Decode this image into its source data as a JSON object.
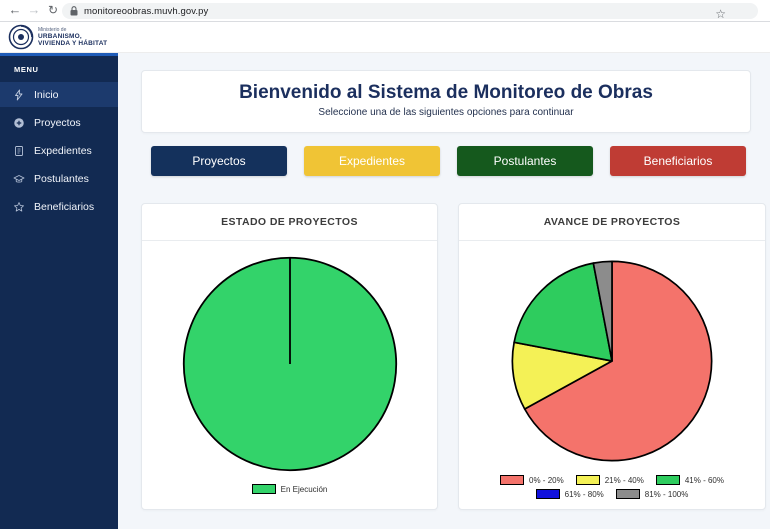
{
  "browser": {
    "url": "monitoreoobras.muvh.gov.py",
    "back_icon": "←",
    "forward_icon": "→",
    "refresh_icon": "↻",
    "star_icon": "☆"
  },
  "header": {
    "logo_line1": "Ministerio de",
    "logo_line2": "URBANISMO,",
    "logo_line3": "VIVIENDA Y HÁBITAT"
  },
  "sidebar": {
    "menu_label": "MENU",
    "items": [
      {
        "label": "Inicio",
        "icon": "bolt-icon",
        "active": true
      },
      {
        "label": "Proyectos",
        "icon": "plus-circle-icon",
        "active": false
      },
      {
        "label": "Expedientes",
        "icon": "journal-icon",
        "active": false
      },
      {
        "label": "Postulantes",
        "icon": "graduation-cap-icon",
        "active": false
      },
      {
        "label": "Beneficiarios",
        "icon": "star-outline-icon",
        "active": false
      }
    ]
  },
  "main": {
    "welcome": {
      "title": "Bienvenido al Sistema de Monitoreo de Obras",
      "subtitle": "Seleccione una de las siguientes opciones para continuar"
    },
    "action_buttons": [
      {
        "label": "Proyectos",
        "color": "#14315c"
      },
      {
        "label": "Expedientes",
        "color": "#f0c435"
      },
      {
        "label": "Postulantes",
        "color": "#15591d"
      },
      {
        "label": "Beneficiarios",
        "color": "#bf3c34"
      }
    ]
  },
  "chart_data": [
    {
      "type": "pie",
      "title": "ESTADO DE PROYECTOS",
      "legend_position": "bottom",
      "slices": [
        {
          "label": "En Ejecución",
          "value": 100,
          "color": "#33d36a"
        }
      ]
    },
    {
      "type": "pie",
      "title": "AVANCE DE PROYECTOS",
      "legend_position": "bottom",
      "start_angle_deg": 0,
      "direction": "clockwise",
      "slices": [
        {
          "label": "0% - 20%",
          "value": 67,
          "color": "#f4736b"
        },
        {
          "label": "21% - 40%",
          "value": 11,
          "color": "#f4f156"
        },
        {
          "label": "41% - 60%",
          "value": 19,
          "color": "#2ecc5e"
        },
        {
          "label": "61% - 80%",
          "value": 0,
          "color": "#1111dd"
        },
        {
          "label": "81% - 100%",
          "value": 3,
          "color": "#8c8c8c"
        }
      ]
    }
  ]
}
